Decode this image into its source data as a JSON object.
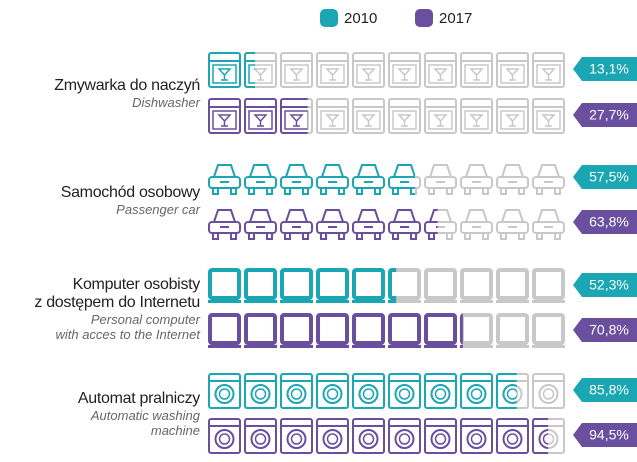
{
  "chart_data": {
    "type": "pictogram",
    "categories": [
      "Zmywarka do naczyń",
      "Samochód osobowy",
      "Komputer osobisty\nz dostępem do Internetu",
      "Automat pralniczy"
    ],
    "categories_en": [
      "Dishwasher",
      "Passenger car",
      "Personal computer\nwith acces to the Internet",
      "Automatic washing\nmachine"
    ],
    "series": [
      {
        "name": "2010",
        "color": "#1ba6b4",
        "values": [
          13.1,
          57.5,
          52.3,
          85.8
        ],
        "value_labels": [
          "13,1%",
          "57,5%",
          "52,3%",
          "85,8%"
        ]
      },
      {
        "name": "2017",
        "color": "#6a4f9e",
        "values": [
          27.7,
          63.8,
          70.8,
          94.5
        ],
        "value_labels": [
          "27,7%",
          "63,8%",
          "70,8%",
          "94,5%"
        ]
      }
    ],
    "xlim": [
      0,
      100
    ]
  }
}
